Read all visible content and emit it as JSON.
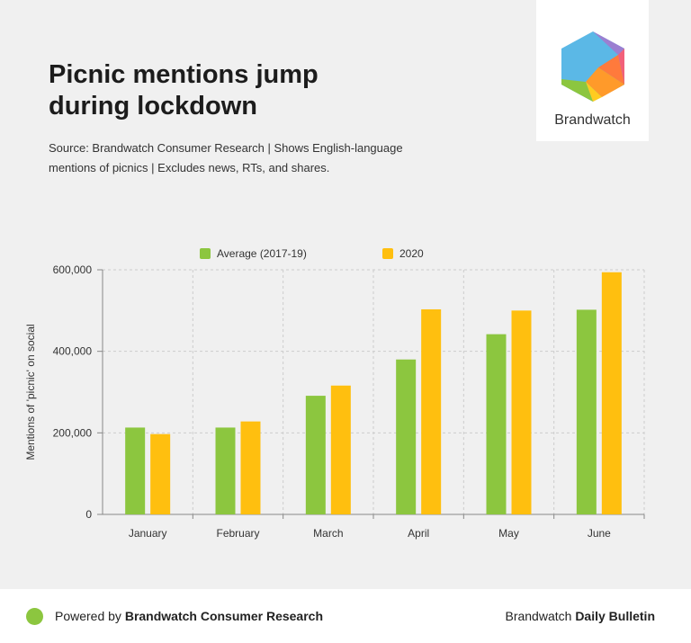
{
  "header": {
    "title": "Picnic mentions jump during lockdown",
    "subtitle": "Source: Brandwatch Consumer Research | Shows English-language mentions of picnics | Excludes news, RTs, and shares."
  },
  "logo": {
    "text": "Brandwatch",
    "icon": "brandwatch-hexagon-logo"
  },
  "colors": {
    "average": "#8cc63f",
    "year2020": "#ffbf0f",
    "grid": "#cccccc",
    "axis": "#888888"
  },
  "chart_data": {
    "type": "bar",
    "categories": [
      "January",
      "February",
      "March",
      "April",
      "May",
      "June"
    ],
    "series": [
      {
        "name": "Average (2017-19)",
        "values": [
          213000,
          213000,
          291000,
          380000,
          442000,
          502000
        ]
      },
      {
        "name": "2020",
        "values": [
          197000,
          228000,
          316000,
          503000,
          500000,
          594000
        ]
      }
    ],
    "title": "Picnic mentions jump during lockdown",
    "xlabel": "",
    "ylabel": "Mentions of 'picnic' on social",
    "ylim": [
      0,
      600000
    ],
    "yticks": [
      0,
      200000,
      400000,
      600000
    ],
    "ytick_labels": [
      "0",
      "200,000",
      "400,000",
      "600,000"
    ],
    "grid": true,
    "legend": "top-center"
  },
  "footer": {
    "left_prefix": "Powered by ",
    "left_bold": "Brandwatch Consumer Research",
    "right_prefix": "Brandwatch ",
    "right_bold": "Daily Bulletin"
  }
}
